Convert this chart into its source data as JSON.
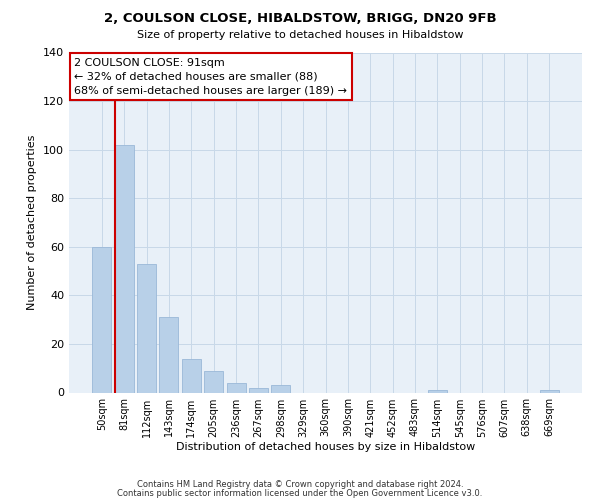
{
  "title": "2, COULSON CLOSE, HIBALDSTOW, BRIGG, DN20 9FB",
  "subtitle": "Size of property relative to detached houses in Hibaldstow",
  "xlabel": "Distribution of detached houses by size in Hibaldstow",
  "ylabel": "Number of detached properties",
  "bar_color": "#b8d0e8",
  "bar_edge_color": "#9ab8d8",
  "ref_line_color": "#cc0000",
  "categories": [
    "50sqm",
    "81sqm",
    "112sqm",
    "143sqm",
    "174sqm",
    "205sqm",
    "236sqm",
    "267sqm",
    "298sqm",
    "329sqm",
    "360sqm",
    "390sqm",
    "421sqm",
    "452sqm",
    "483sqm",
    "514sqm",
    "545sqm",
    "576sqm",
    "607sqm",
    "638sqm",
    "669sqm"
  ],
  "values": [
    60,
    102,
    53,
    31,
    14,
    9,
    4,
    2,
    3,
    0,
    0,
    0,
    0,
    0,
    0,
    1,
    0,
    0,
    0,
    0,
    1
  ],
  "ylim": [
    0,
    140
  ],
  "yticks": [
    0,
    20,
    40,
    60,
    80,
    100,
    120,
    140
  ],
  "annotation_title": "2 COULSON CLOSE: 91sqm",
  "annotation_line1": "← 32% of detached houses are smaller (88)",
  "annotation_line2": "68% of semi-detached houses are larger (189) →",
  "footnote1": "Contains HM Land Registry data © Crown copyright and database right 2024.",
  "footnote2": "Contains public sector information licensed under the Open Government Licence v3.0.",
  "background_color": "#ffffff",
  "grid_color": "#c8d8e8"
}
